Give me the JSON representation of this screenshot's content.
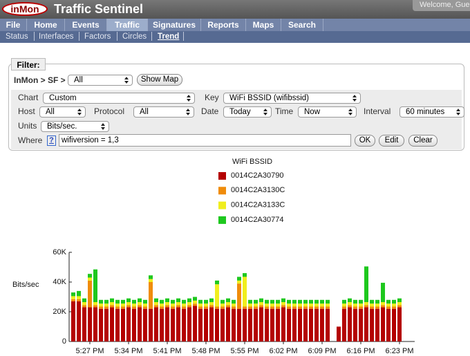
{
  "header": {
    "logo": "inMon",
    "title": "Traffic Sentinel",
    "welcome": "Welcome, Gue"
  },
  "nav": [
    "File",
    "Home",
    "Events",
    "Traffic",
    "Signatures",
    "Reports",
    "Maps",
    "Search"
  ],
  "subnav": [
    "Status",
    "Interfaces",
    "Factors",
    "Circles",
    "Trend"
  ],
  "filter": {
    "legend": "Filter:",
    "path": "InMon > SF >",
    "path_select": "All",
    "show_map": "Show Map",
    "chart_label": "Chart",
    "chart_value": "Custom",
    "key_label": "Key",
    "key_value": "WiFi BSSID (wifibssid)",
    "host_label": "Host",
    "host_value": "All",
    "protocol_label": "Protocol",
    "protocol_value": "All",
    "date_label": "Date",
    "date_value": "Today",
    "time_label": "Time",
    "time_value": "Now",
    "interval_label": "Interval",
    "interval_value": "60 minutes",
    "units_label": "Units",
    "units_value": "Bits/sec.",
    "where_label": "Where",
    "help": "?",
    "where_value": "wifiversion = 1,3",
    "ok": "OK",
    "edit": "Edit",
    "clear": "Clear"
  },
  "chart_data": {
    "type": "stacked_bar",
    "legend_title": "WiFi BSSID",
    "y_label": "Bits/sec",
    "categories": [
      null,
      null,
      null,
      "5:27 PM",
      null,
      null,
      null,
      null,
      null,
      null,
      "5:34 PM",
      null,
      null,
      null,
      null,
      null,
      null,
      "5:41 PM",
      null,
      null,
      null,
      null,
      null,
      null,
      "5:48 PM",
      null,
      null,
      null,
      null,
      null,
      null,
      "5:55 PM",
      null,
      null,
      null,
      null,
      null,
      null,
      "6:02 PM",
      null,
      null,
      null,
      null,
      null,
      null,
      "6:09 PM",
      null,
      null,
      null,
      null,
      null,
      null,
      "6:16 PM",
      null,
      null,
      null,
      null,
      null,
      null,
      "6:23 PM"
    ],
    "ylim": [
      0,
      60000
    ],
    "yticks": [
      0,
      {
        "value": 20000,
        "label": "20K"
      },
      {
        "value": 40000,
        "label": "40K"
      },
      {
        "value": 60000,
        "label": "60K"
      }
    ],
    "series": [
      {
        "name": "0014C2A30790",
        "color": "#b40000",
        "values": [
          27000,
          27000,
          23000,
          23000,
          23000,
          22000,
          22000,
          23000,
          22000,
          22000,
          23000,
          22000,
          23000,
          22000,
          22000,
          23000,
          22000,
          23000,
          22000,
          23000,
          22000,
          23000,
          24000,
          22000,
          22000,
          23000,
          22000,
          22000,
          23000,
          22000,
          22000,
          22000,
          22000,
          22000,
          23000,
          22000,
          22000,
          22000,
          23000,
          22000,
          22000,
          22000,
          22000,
          22000,
          22000,
          22000,
          22000,
          null,
          10000,
          22000,
          23000,
          22000,
          22000,
          23000,
          22000,
          22000,
          23000,
          22000,
          22000,
          23000
        ]
      },
      {
        "name": "0014C2A3130C",
        "color": "#f08c0a",
        "values": [
          1500,
          1500,
          1500,
          18000,
          1500,
          1500,
          1500,
          1500,
          1500,
          1500,
          1500,
          1500,
          1500,
          1500,
          18000,
          1500,
          1500,
          1500,
          1500,
          1500,
          1500,
          1500,
          1500,
          1500,
          1500,
          1500,
          1500,
          1500,
          1500,
          1500,
          17000,
          1500,
          1500,
          1500,
          1500,
          1500,
          1500,
          1500,
          1500,
          1500,
          1500,
          1500,
          1500,
          1500,
          1500,
          1500,
          1500,
          null,
          0,
          1500,
          1500,
          1500,
          1500,
          1500,
          1500,
          1500,
          1500,
          1500,
          1500,
          1500
        ]
      },
      {
        "name": "0014C2A3133C",
        "color": "#f0ee1e",
        "values": [
          2000,
          2000,
          2000,
          2000,
          2000,
          2000,
          2000,
          2000,
          2000,
          2000,
          2000,
          2000,
          2000,
          2000,
          2000,
          2000,
          2000,
          2000,
          2000,
          2000,
          2000,
          2000,
          2000,
          2000,
          2000,
          2000,
          15000,
          2000,
          2000,
          2000,
          2000,
          20000,
          2000,
          2000,
          2000,
          2000,
          2000,
          2000,
          2000,
          2000,
          2000,
          2000,
          2000,
          2000,
          2000,
          2000,
          2000,
          null,
          0,
          2000,
          2000,
          2000,
          2000,
          2000,
          2000,
          2000,
          2000,
          2000,
          2000,
          2000
        ]
      },
      {
        "name": "0014C2A30774",
        "color": "#1ec81e",
        "values": [
          2500,
          3500,
          2500,
          2500,
          22000,
          2500,
          2500,
          2500,
          2500,
          2500,
          2500,
          2500,
          2500,
          2500,
          2500,
          2500,
          2500,
          2500,
          2500,
          2500,
          2500,
          2500,
          2500,
          2500,
          2500,
          2500,
          2500,
          2500,
          2500,
          2500,
          2500,
          2500,
          2500,
          2500,
          2500,
          2500,
          2500,
          2500,
          2500,
          2500,
          2500,
          2500,
          2500,
          2500,
          2500,
          2500,
          2500,
          null,
          0,
          2500,
          2500,
          2500,
          2500,
          24000,
          2500,
          2500,
          13000,
          2500,
          2500,
          2500
        ]
      }
    ]
  }
}
